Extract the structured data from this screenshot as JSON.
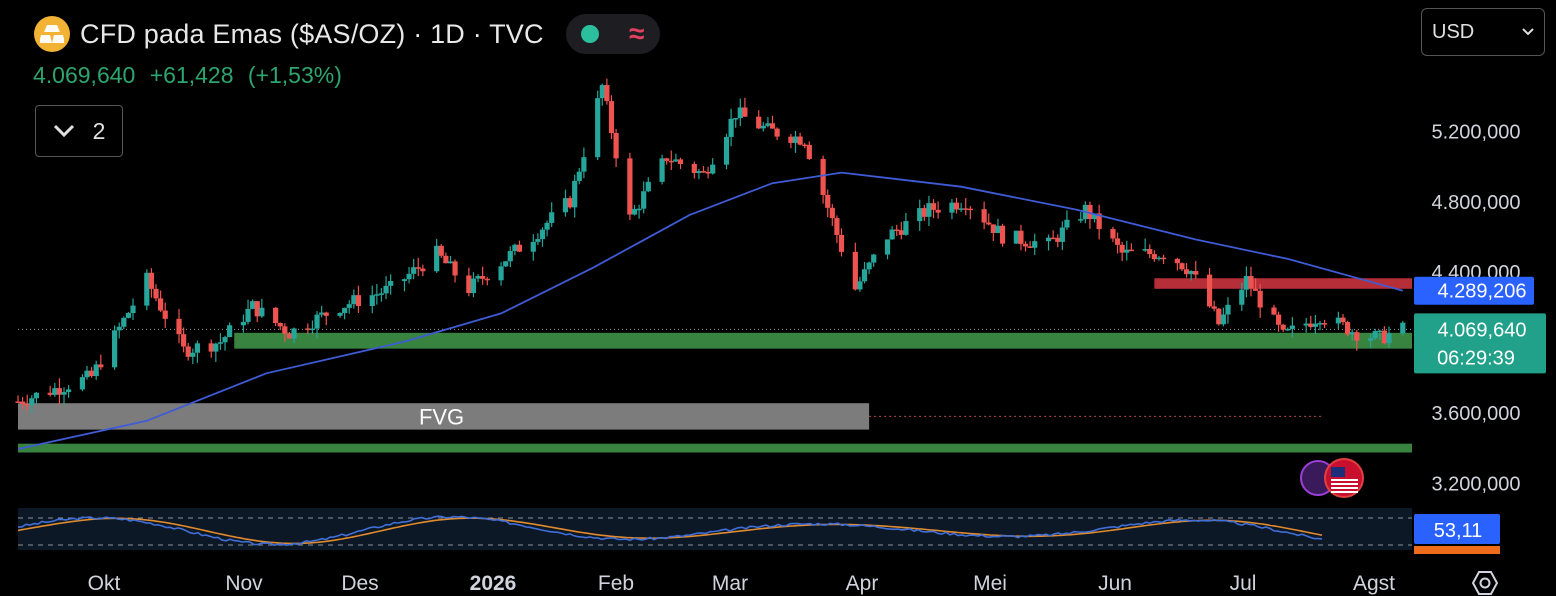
{
  "header": {
    "title": "CFD pada Emas ($AS/OZ) · 1D · TVC",
    "last": "4.069,640",
    "change": "+61,428",
    "change_pct": "(+1,53%)",
    "indicators_count": "2"
  },
  "currency": {
    "selected": "USD"
  },
  "price_axis": {
    "ticks": [
      {
        "value": 5200000,
        "label": "5.200,000"
      },
      {
        "value": 4800000,
        "label": "4.800,000"
      },
      {
        "value": 4400000,
        "label": "4.400,000"
      },
      {
        "value": 3600000,
        "label": "3.600,000"
      },
      {
        "value": 3200000,
        "label": "3.200,000"
      }
    ],
    "ma_tag": "4.289,206",
    "price_tag": "4.069,640",
    "countdown": "06:29:39"
  },
  "time_axis": {
    "labels": [
      "Okt",
      "Nov",
      "Des",
      "2026",
      "Feb",
      "Mar",
      "Apr",
      "Mei",
      "Jun",
      "Jul",
      "Agst"
    ]
  },
  "oscillator": {
    "value": "53,11"
  },
  "annotations": {
    "fvg_label": "FVG"
  },
  "colors": {
    "up": "#26a69a",
    "down": "#ef5350",
    "ma": "#3f5bd6",
    "zone_green": "#3c8a45",
    "zone_red": "#c0303a",
    "fvg": "#8a8a8a",
    "osc_k": "#3f6fd8",
    "osc_d": "#e08a2e"
  },
  "chart_data": {
    "type": "candlestick",
    "title": "CFD pada Emas ($AS/OZ) · 1D · TVC",
    "x_start": "2025-09-22",
    "x_end": "2026-07-22",
    "ylim": [
      3100000,
      5600000
    ],
    "close_path": [
      [
        "2025-09-22",
        3660000
      ],
      [
        "2025-10-08",
        3800000
      ],
      [
        "2025-10-20",
        4350000
      ],
      [
        "2025-10-28",
        3950000
      ],
      [
        "2025-11-05",
        4000000
      ],
      [
        "2025-11-12",
        4200000
      ],
      [
        "2025-11-20",
        4050000
      ],
      [
        "2025-12-01",
        4200000
      ],
      [
        "2025-12-12",
        4300000
      ],
      [
        "2025-12-22",
        4500000
      ],
      [
        "2025-12-29",
        4300000
      ],
      [
        "2026-01-12",
        4600000
      ],
      [
        "2026-01-20",
        4800000
      ],
      [
        "2026-01-27",
        5450000
      ],
      [
        "2026-02-02",
        4700000
      ],
      [
        "2026-02-10",
        5050000
      ],
      [
        "2026-02-18",
        4950000
      ],
      [
        "2026-02-25",
        5300000
      ],
      [
        "2026-03-04",
        5200000
      ],
      [
        "2026-03-12",
        5150000
      ],
      [
        "2026-03-23",
        4300000
      ],
      [
        "2026-03-30",
        4600000
      ],
      [
        "2026-04-08",
        4750000
      ],
      [
        "2026-04-16",
        4800000
      ],
      [
        "2026-04-24",
        4600000
      ],
      [
        "2026-05-04",
        4550000
      ],
      [
        "2026-05-12",
        4750000
      ],
      [
        "2026-05-20",
        4500000
      ],
      [
        "2026-05-30",
        4500000
      ],
      [
        "2026-06-04",
        4400000
      ],
      [
        "2026-06-10",
        4100000
      ],
      [
        "2026-06-16",
        4350000
      ],
      [
        "2026-06-24",
        4030000
      ],
      [
        "2026-07-02",
        4150000
      ],
      [
        "2026-07-10",
        4050000
      ],
      [
        "2026-07-15",
        4020000
      ],
      [
        "2026-07-20",
        4069640
      ]
    ],
    "moving_average": [
      [
        "2025-09-22",
        3390000
      ],
      [
        "2025-10-20",
        3550000
      ],
      [
        "2025-11-15",
        3820000
      ],
      [
        "2025-12-15",
        4000000
      ],
      [
        "2026-01-05",
        4160000
      ],
      [
        "2026-01-25",
        4420000
      ],
      [
        "2026-02-15",
        4720000
      ],
      [
        "2026-03-05",
        4900000
      ],
      [
        "2026-03-20",
        4960000
      ],
      [
        "2026-04-15",
        4880000
      ],
      [
        "2026-05-10",
        4750000
      ],
      [
        "2026-06-05",
        4580000
      ],
      [
        "2026-06-25",
        4470000
      ],
      [
        "2026-07-20",
        4289206
      ]
    ],
    "zones": [
      {
        "type": "support",
        "from": "2025-11-08",
        "to": "2026-07-22",
        "y_low": 3960000,
        "y_high": 4050000
      },
      {
        "type": "resistance",
        "from": "2026-05-27",
        "to": "2026-07-22",
        "y_low": 4300000,
        "y_high": 4360000
      },
      {
        "type": "FVG",
        "from": "2025-09-22",
        "to": "2026-03-26",
        "y_low": 3500000,
        "y_high": 3650000
      },
      {
        "type": "support",
        "from": "2025-09-22",
        "to": "2026-07-22",
        "y_low": 3370000,
        "y_high": 3420000
      }
    ],
    "current_price": 4069640,
    "oscillator_value": 53.11
  }
}
